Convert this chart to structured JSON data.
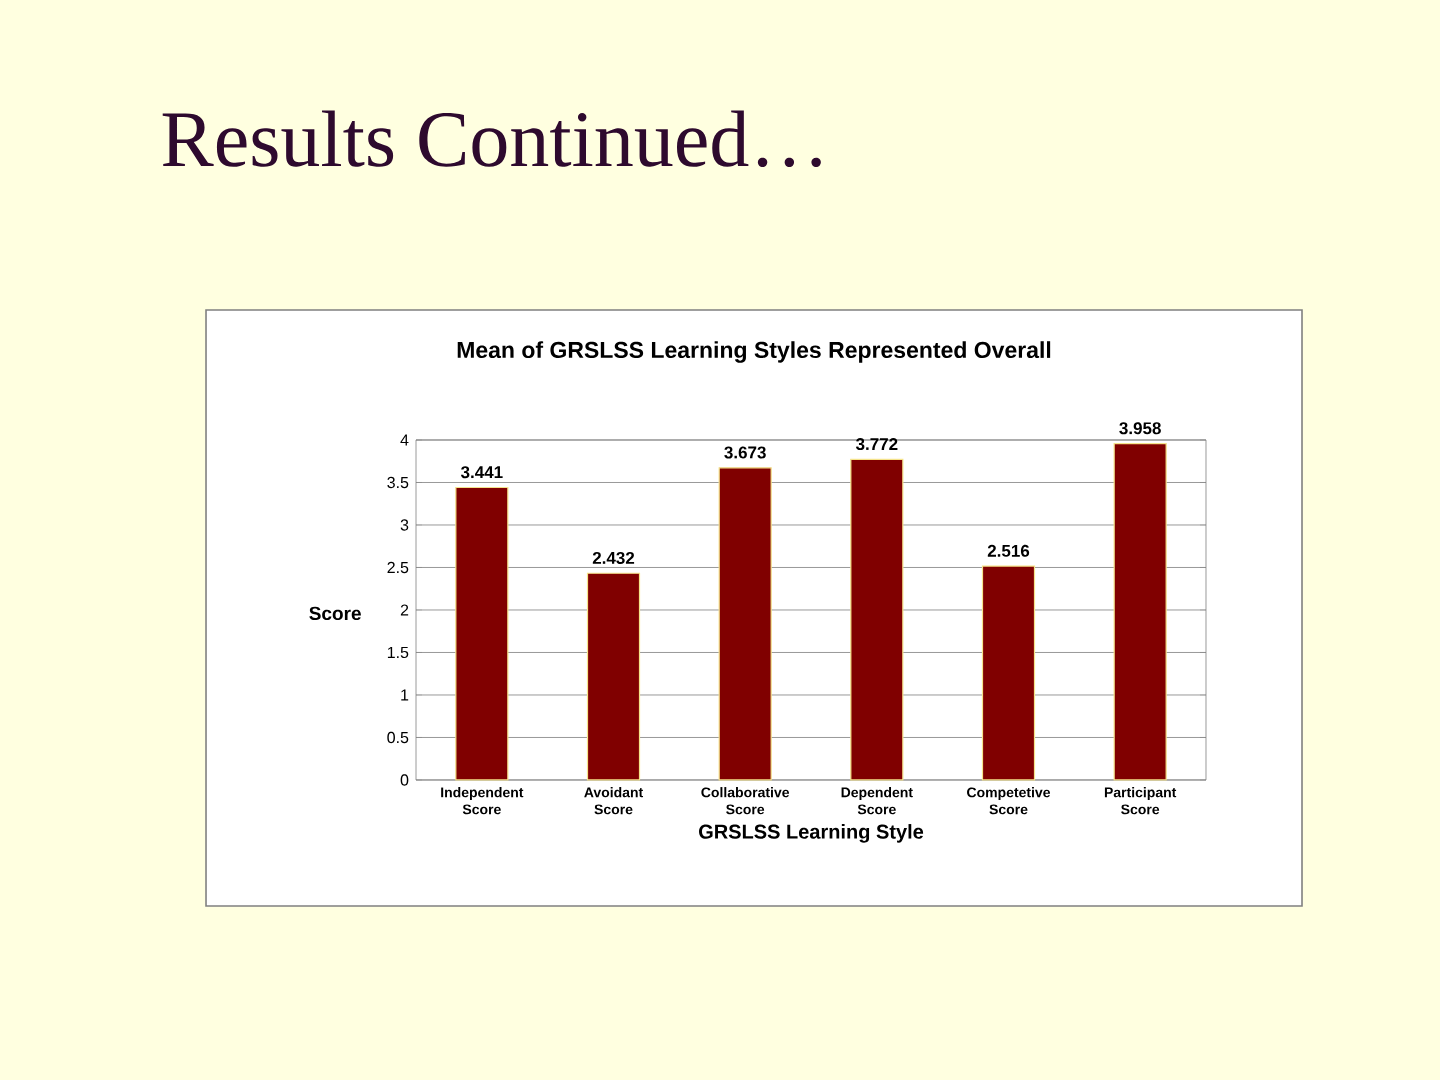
{
  "chart_data": {
    "type": "bar",
    "title": "Results Continued…",
    "subtitle": "Mean of GRSLSS Learning Styles Represented Overall",
    "xlabel": "GRSLSS Learning Style",
    "ylabel": "Score",
    "categories": [
      "Independent Score",
      "Avoidant Score",
      "Collaborative Score",
      "Dependent Score",
      "Competetive Score",
      "Participant Score"
    ],
    "values": [
      3.441,
      2.432,
      3.673,
      3.772,
      2.516,
      3.958
    ],
    "color": "#800000",
    "ylim": [
      0,
      4
    ],
    "yticks": [
      0,
      0.5,
      1,
      1.5,
      2,
      2.5,
      3,
      3.5,
      4
    ],
    "grid": "y",
    "data_labels": true
  }
}
